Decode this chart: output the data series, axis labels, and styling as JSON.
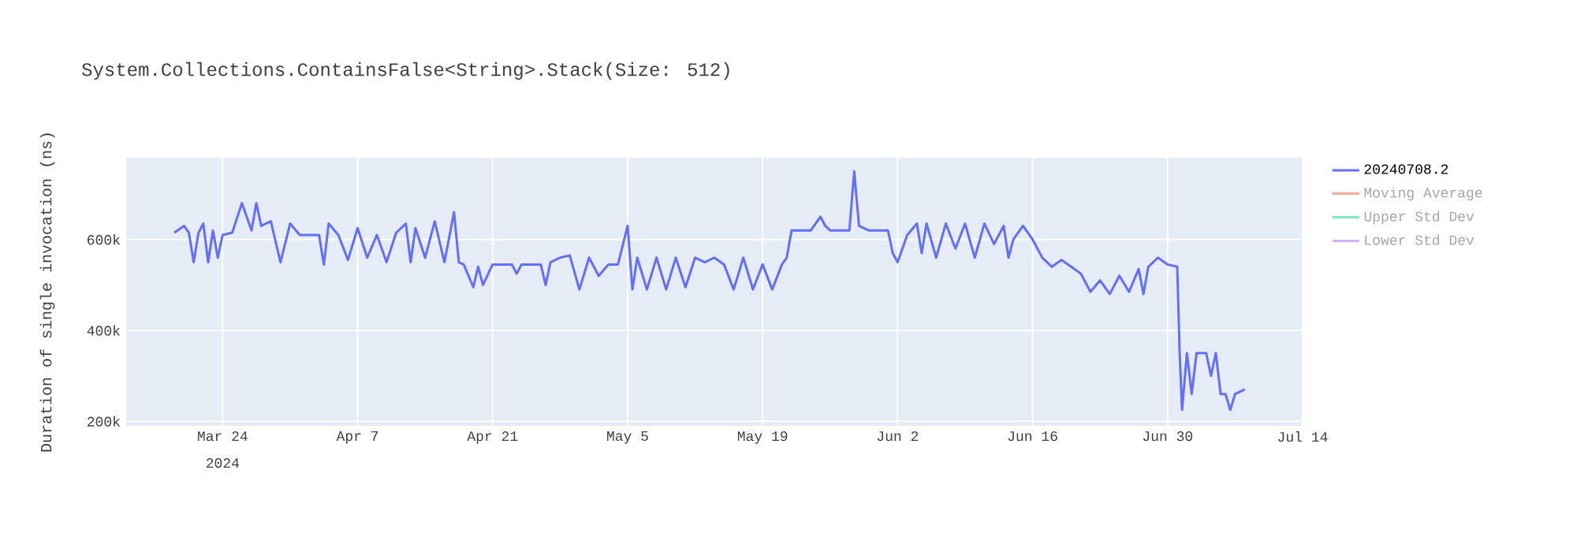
{
  "chart_data": {
    "type": "line",
    "title": "System.Collections.ContainsFalse<String>.Stack(Size: 512)",
    "ylabel": "Duration of single invocation (ns)",
    "annotations": [
      "2024"
    ],
    "xlim": [
      "2024-03-14",
      "2024-07-14"
    ],
    "xticks": [
      {
        "value": "2024-03-24",
        "label": "Mar 24"
      },
      {
        "value": "2024-04-07",
        "label": "Apr 7"
      },
      {
        "value": "2024-04-21",
        "label": "Apr 21"
      },
      {
        "value": "2024-05-05",
        "label": "May 5"
      },
      {
        "value": "2024-05-19",
        "label": "May 19"
      },
      {
        "value": "2024-06-02",
        "label": "Jun 2"
      },
      {
        "value": "2024-06-16",
        "label": "Jun 16"
      },
      {
        "value": "2024-06-30",
        "label": "Jun 30"
      },
      {
        "value": "2024-07-14",
        "label": "Jul 14"
      }
    ],
    "ylim": [
      190000,
      780000
    ],
    "yticks": [
      {
        "value": 200000,
        "label": "200k"
      },
      {
        "value": 400000,
        "label": "400k"
      },
      {
        "value": 600000,
        "label": "600k"
      }
    ],
    "grid": true,
    "legend": "top right",
    "marker": "none",
    "line_style": "solid",
    "x": [
      "2024-03-19",
      "2024-03-20",
      "2024-03-20T12:00",
      "2024-03-21",
      "2024-03-21T12:00",
      "2024-03-22",
      "2024-03-22T12:00",
      "2024-03-23",
      "2024-03-23T12:00",
      "2024-03-24",
      "2024-03-25",
      "2024-03-26",
      "2024-03-27",
      "2024-03-27T12:00",
      "2024-03-28",
      "2024-03-29",
      "2024-03-30",
      "2024-03-31",
      "2024-04-01",
      "2024-04-03",
      "2024-04-03T12:00",
      "2024-04-04",
      "2024-04-05",
      "2024-04-06",
      "2024-04-07",
      "2024-04-08",
      "2024-04-09",
      "2024-04-10",
      "2024-04-11",
      "2024-04-12",
      "2024-04-12T12:00",
      "2024-04-13",
      "2024-04-14",
      "2024-04-15",
      "2024-04-16",
      "2024-04-17",
      "2024-04-17T12:00",
      "2024-04-18",
      "2024-04-19",
      "2024-04-19T12:00",
      "2024-04-20",
      "2024-04-21",
      "2024-04-23",
      "2024-04-23T12:00",
      "2024-04-24",
      "2024-04-26",
      "2024-04-26T12:00",
      "2024-04-27",
      "2024-04-28",
      "2024-04-29",
      "2024-04-30",
      "2024-05-01",
      "2024-05-02",
      "2024-05-03",
      "2024-05-04",
      "2024-05-05",
      "2024-05-05T12:00",
      "2024-05-06",
      "2024-05-07",
      "2024-05-08",
      "2024-05-09",
      "2024-05-10",
      "2024-05-11",
      "2024-05-12",
      "2024-05-13",
      "2024-05-14",
      "2024-05-15",
      "2024-05-16",
      "2024-05-17",
      "2024-05-18",
      "2024-05-19",
      "2024-05-20",
      "2024-05-21",
      "2024-05-21T12:00",
      "2024-05-22",
      "2024-05-24",
      "2024-05-25",
      "2024-05-25T12:00",
      "2024-05-26",
      "2024-05-28",
      "2024-05-28T12:00",
      "2024-05-29",
      "2024-05-30",
      "2024-06-01",
      "2024-06-01T12:00",
      "2024-06-02",
      "2024-06-03",
      "2024-06-04",
      "2024-06-04T12:00",
      "2024-06-05",
      "2024-06-06",
      "2024-06-07",
      "2024-06-08",
      "2024-06-09",
      "2024-06-10",
      "2024-06-11",
      "2024-06-12",
      "2024-06-13",
      "2024-06-13T12:00",
      "2024-06-14",
      "2024-06-15",
      "2024-06-16",
      "2024-06-17",
      "2024-06-18",
      "2024-06-19",
      "2024-06-20",
      "2024-06-21",
      "2024-06-22",
      "2024-06-23",
      "2024-06-24",
      "2024-06-25",
      "2024-06-26",
      "2024-06-27",
      "2024-06-27T12:00",
      "2024-06-28",
      "2024-06-29",
      "2024-06-30",
      "2024-07-01",
      "2024-07-01T06:00",
      "2024-07-01T12:00",
      "2024-07-02",
      "2024-07-02T12:00",
      "2024-07-03",
      "2024-07-04",
      "2024-07-04T12:00",
      "2024-07-05",
      "2024-07-05T12:00",
      "2024-07-06",
      "2024-07-06T12:00",
      "2024-07-07",
      "2024-07-08"
    ],
    "series": [
      {
        "name": "20240708.2",
        "color": "#636efa",
        "values": [
          615000,
          630000,
          615000,
          550000,
          615000,
          635000,
          550000,
          620000,
          560000,
          610000,
          615000,
          680000,
          620000,
          680000,
          630000,
          640000,
          550000,
          635000,
          610000,
          610000,
          545000,
          635000,
          610000,
          555000,
          625000,
          560000,
          610000,
          550000,
          615000,
          635000,
          550000,
          625000,
          560000,
          640000,
          550000,
          660000,
          550000,
          545000,
          495000,
          540000,
          500000,
          545000,
          545000,
          525000,
          545000,
          545000,
          500000,
          550000,
          560000,
          565000,
          490000,
          560000,
          520000,
          545000,
          545000,
          630000,
          490000,
          560000,
          490000,
          560000,
          490000,
          560000,
          495000,
          560000,
          550000,
          560000,
          545000,
          490000,
          560000,
          490000,
          545000,
          490000,
          545000,
          560000,
          620000,
          620000,
          650000,
          630000,
          620000,
          620000,
          750000,
          630000,
          620000,
          620000,
          570000,
          550000,
          610000,
          635000,
          570000,
          635000,
          560000,
          635000,
          580000,
          635000,
          560000,
          635000,
          590000,
          630000,
          560000,
          600000,
          630000,
          600000,
          560000,
          540000,
          555000,
          540000,
          525000,
          485000,
          510000,
          480000,
          520000,
          485000,
          535000,
          480000,
          540000,
          560000,
          545000,
          540000,
          350000,
          225000,
          350000,
          260000,
          350000,
          350000,
          300000,
          350000,
          260000,
          260000,
          225000,
          260000,
          270000
        ]
      },
      {
        "name": "Moving Average",
        "color": "#f7aa9d",
        "values": [
          null,
          null,
          null,
          null,
          null,
          null,
          null,
          null,
          null,
          null,
          null,
          null,
          null,
          null,
          null,
          null,
          null,
          null,
          null,
          null,
          null,
          null,
          null,
          null,
          null,
          null,
          null,
          null,
          null,
          null,
          null,
          null,
          null,
          null,
          null,
          null,
          null,
          null,
          null,
          null,
          null,
          null,
          null,
          null,
          null,
          null,
          null,
          null,
          null,
          null,
          null,
          null,
          null,
          null,
          null,
          null,
          null,
          null,
          null,
          null,
          null,
          null,
          null,
          null,
          null,
          null,
          null,
          null,
          null,
          null,
          null,
          null,
          null,
          null,
          null,
          null,
          null,
          null,
          null,
          null,
          null,
          null,
          null,
          null,
          null,
          null,
          null,
          null,
          null,
          null,
          null,
          null,
          null,
          null,
          null,
          null,
          null,
          null,
          null,
          null,
          null,
          null,
          null,
          null,
          null,
          null,
          null,
          null,
          null,
          null,
          null,
          null,
          null,
          null,
          null,
          null,
          null,
          null,
          null,
          null,
          null,
          null,
          null,
          null,
          null,
          null,
          null,
          null,
          null,
          null,
          null
        ]
      },
      {
        "name": "Upper Std Dev",
        "color": "#80e6cb",
        "values": [
          null,
          null,
          null,
          null,
          null,
          null,
          null,
          null,
          null,
          null,
          null,
          null,
          null,
          null,
          null,
          null,
          null,
          null,
          null,
          null,
          null,
          null,
          null,
          null,
          null,
          null,
          null,
          null,
          null,
          null,
          null,
          null,
          null,
          null,
          null,
          null,
          null,
          null,
          null,
          null,
          null,
          null,
          null,
          null,
          null,
          null,
          null,
          null,
          null,
          null,
          null,
          null,
          null,
          null,
          null,
          null,
          null,
          null,
          null,
          null,
          null,
          null,
          null,
          null,
          null,
          null,
          null,
          null,
          null,
          null,
          null,
          null,
          null,
          null,
          null,
          null,
          null,
          null,
          null,
          null,
          null,
          null,
          null,
          null,
          null,
          null,
          null,
          null,
          null,
          null,
          null,
          null,
          null,
          null,
          null,
          null,
          null,
          null,
          null,
          null,
          null,
          null,
          null,
          null,
          null,
          null,
          null,
          null,
          null,
          null,
          null,
          null,
          null,
          null,
          null,
          null,
          null,
          null,
          null,
          null,
          null,
          null,
          null,
          null,
          null,
          null,
          null,
          null,
          null,
          null,
          null
        ]
      },
      {
        "name": "Lower Std Dev",
        "color": "#d5b1fd",
        "values": [
          null,
          null,
          null,
          null,
          null,
          null,
          null,
          null,
          null,
          null,
          null,
          null,
          null,
          null,
          null,
          null,
          null,
          null,
          null,
          null,
          null,
          null,
          null,
          null,
          null,
          null,
          null,
          null,
          null,
          null,
          null,
          null,
          null,
          null,
          null,
          null,
          null,
          null,
          null,
          null,
          null,
          null,
          null,
          null,
          null,
          null,
          null,
          null,
          null,
          null,
          null,
          null,
          null,
          null,
          null,
          null,
          null,
          null,
          null,
          null,
          null,
          null,
          null,
          null,
          null,
          null,
          null,
          null,
          null,
          null,
          null,
          null,
          null,
          null,
          null,
          null,
          null,
          null,
          null,
          null,
          null,
          null,
          null,
          null,
          null,
          null,
          null,
          null,
          null,
          null,
          null,
          null,
          null,
          null,
          null,
          null,
          null,
          null,
          null,
          null,
          null,
          null,
          null,
          null,
          null,
          null,
          null,
          null,
          null,
          null,
          null,
          null,
          null,
          null,
          null,
          null,
          null,
          null,
          null,
          null,
          null,
          null,
          null,
          null,
          null,
          null,
          null,
          null,
          null,
          null,
          null
        ]
      }
    ]
  }
}
